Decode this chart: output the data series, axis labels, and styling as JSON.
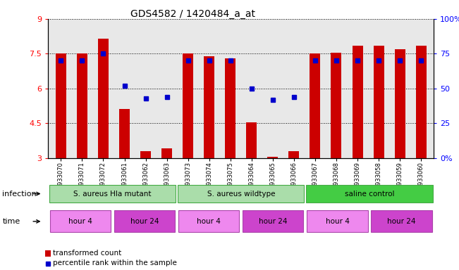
{
  "title": "GDS4582 / 1420484_a_at",
  "samples": [
    "GSM933070",
    "GSM933071",
    "GSM933072",
    "GSM933061",
    "GSM933062",
    "GSM933063",
    "GSM933073",
    "GSM933074",
    "GSM933075",
    "GSM933064",
    "GSM933065",
    "GSM933066",
    "GSM933067",
    "GSM933068",
    "GSM933069",
    "GSM933058",
    "GSM933059",
    "GSM933060"
  ],
  "bar_values": [
    7.5,
    7.5,
    8.15,
    5.1,
    3.3,
    3.4,
    7.5,
    7.4,
    7.3,
    4.55,
    3.05,
    3.3,
    7.5,
    7.55,
    7.85,
    7.85,
    7.7,
    7.85
  ],
  "dot_pct": [
    70,
    70,
    75,
    52,
    43,
    44,
    70,
    70,
    70,
    50,
    42,
    44,
    70,
    70,
    70,
    70,
    70,
    70
  ],
  "ylim_left": [
    3,
    9
  ],
  "ylim_right": [
    0,
    100
  ],
  "yticks_left": [
    3,
    4.5,
    6,
    7.5,
    9
  ],
  "ytick_labels_left": [
    "3",
    "4.5",
    "6",
    "7.5",
    "9"
  ],
  "ytick_labels_right": [
    "0%",
    "25",
    "50",
    "75",
    "100%"
  ],
  "yticks_right": [
    0,
    25,
    50,
    75,
    100
  ],
  "bar_color": "#cc0000",
  "dot_color": "#0000cc",
  "plot_bg": "#e8e8e8",
  "infection_groups": [
    {
      "label": "S. aureus Hla mutant",
      "start": 0,
      "end": 6,
      "color": "#aaddaa"
    },
    {
      "label": "S. aureus wildtype",
      "start": 6,
      "end": 12,
      "color": "#aaddaa"
    },
    {
      "label": "saline control",
      "start": 12,
      "end": 18,
      "color": "#44cc44"
    }
  ],
  "time_groups": [
    {
      "label": "hour 4",
      "start": 0,
      "end": 3,
      "color": "#ee88ee"
    },
    {
      "label": "hour 24",
      "start": 3,
      "end": 6,
      "color": "#cc44cc"
    },
    {
      "label": "hour 4",
      "start": 6,
      "end": 9,
      "color": "#ee88ee"
    },
    {
      "label": "hour 24",
      "start": 9,
      "end": 12,
      "color": "#cc44cc"
    },
    {
      "label": "hour 4",
      "start": 12,
      "end": 15,
      "color": "#ee88ee"
    },
    {
      "label": "hour 24",
      "start": 15,
      "end": 18,
      "color": "#cc44cc"
    }
  ],
  "legend_bar_label": "transformed count",
  "legend_dot_label": "percentile rank within the sample",
  "infection_label": "infection",
  "time_label": "time"
}
